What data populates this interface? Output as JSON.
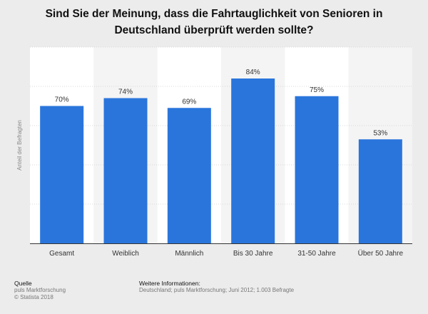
{
  "chart_data": {
    "type": "bar",
    "title": "Sind Sie der Meinung, dass die Fahrtauglichkeit von Senioren in Deutschland überprüft werden sollte?",
    "title_line1": "Sind Sie der Meinung, dass die Fahrtauglichkeit von Senioren in",
    "title_line2": "Deutschland überprüft werden sollte?",
    "ylabel": "Anteil der Befragten",
    "xlabel": "",
    "categories": [
      "Gesamt",
      "Weiblich",
      "Männlich",
      "Bis 30 Jahre",
      "31-50 Jahre",
      "Über 50 Jahre"
    ],
    "values": [
      70,
      74,
      69,
      84,
      75,
      53
    ],
    "value_labels": [
      "70%",
      "74%",
      "69%",
      "84%",
      "75%",
      "53%"
    ],
    "ylim": [
      0,
      100
    ],
    "grid": true,
    "bar_color": "#2a75dc",
    "shaded_band_color": "#f4f4f4"
  },
  "footer": {
    "source_heading": "Quelle",
    "source_lines": [
      "puls Marktforschung",
      "© Statista 2018"
    ],
    "info_heading": "Weitere Informationen:",
    "info_text": "Deutschland; puls Marktforschung; Juni 2012; 1.003 Befragte"
  }
}
